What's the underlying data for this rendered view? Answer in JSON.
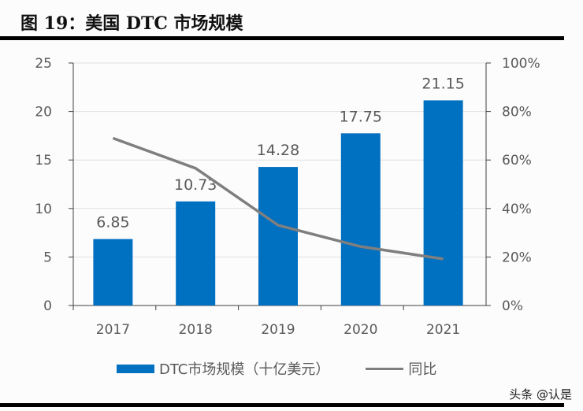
{
  "title": "图 19：美国 DTC 市场规模",
  "watermark": "头条 @认是",
  "chart_data": {
    "type": "bar+line",
    "categories": [
      "2017",
      "2018",
      "2019",
      "2020",
      "2021"
    ],
    "series": [
      {
        "name": "DTC市场规模（十亿美元）",
        "type": "bar",
        "axis": "left",
        "color": "#0070c0",
        "values": [
          6.85,
          10.73,
          14.28,
          17.75,
          21.15
        ],
        "labels": [
          "6.85",
          "10.73",
          "14.28",
          "17.75",
          "21.15"
        ]
      },
      {
        "name": "同比",
        "type": "line",
        "axis": "right",
        "color": "#7f7f7f",
        "values": [
          69,
          56.6,
          33.1,
          24.3,
          19.2
        ]
      }
    ],
    "left_axis": {
      "range": [
        0,
        25
      ],
      "ticks": [
        "0",
        "5",
        "10",
        "15",
        "20",
        "25"
      ]
    },
    "right_axis": {
      "range": [
        0,
        100
      ],
      "ticks": [
        "0%",
        "20%",
        "40%",
        "60%",
        "80%",
        "100%"
      ]
    },
    "grid": true,
    "legend": "bottom"
  }
}
